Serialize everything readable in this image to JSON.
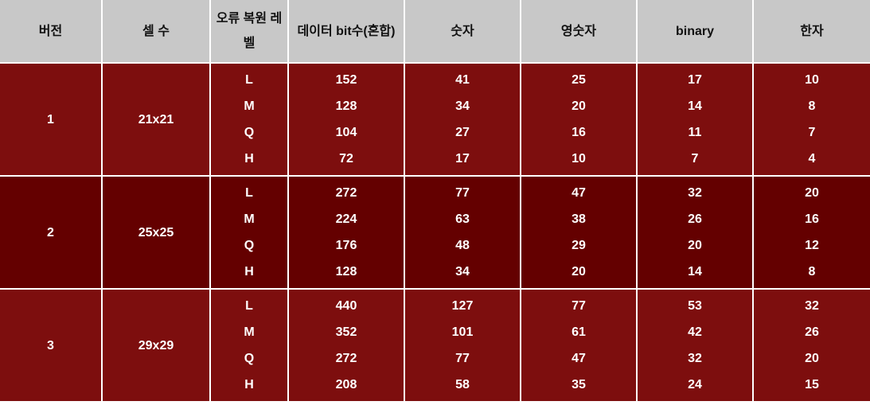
{
  "headers": [
    "버전",
    "셀 수",
    "오류 복원 레벨",
    "데이터 bit수(혼합)",
    "숫자",
    "영숫자",
    "binary",
    "한자"
  ],
  "versions": [
    {
      "version": "1",
      "cells": "21x21",
      "rows": [
        {
          "level": "L",
          "bits": "152",
          "numeric": "41",
          "alnum": "25",
          "binary": "17",
          "kanji": "10"
        },
        {
          "level": "M",
          "bits": "128",
          "numeric": "34",
          "alnum": "20",
          "binary": "14",
          "kanji": "8"
        },
        {
          "level": "Q",
          "bits": "104",
          "numeric": "27",
          "alnum": "16",
          "binary": "11",
          "kanji": "7"
        },
        {
          "level": "H",
          "bits": "72",
          "numeric": "17",
          "alnum": "10",
          "binary": "7",
          "kanji": "4"
        }
      ]
    },
    {
      "version": "2",
      "cells": "25x25",
      "rows": [
        {
          "level": "L",
          "bits": "272",
          "numeric": "77",
          "alnum": "47",
          "binary": "32",
          "kanji": "20"
        },
        {
          "level": "M",
          "bits": "224",
          "numeric": "63",
          "alnum": "38",
          "binary": "26",
          "kanji": "16"
        },
        {
          "level": "Q",
          "bits": "176",
          "numeric": "48",
          "alnum": "29",
          "binary": "20",
          "kanji": "12"
        },
        {
          "level": "H",
          "bits": "128",
          "numeric": "34",
          "alnum": "20",
          "binary": "14",
          "kanji": "8"
        }
      ]
    },
    {
      "version": "3",
      "cells": "29x29",
      "rows": [
        {
          "level": "L",
          "bits": "440",
          "numeric": "127",
          "alnum": "77",
          "binary": "53",
          "kanji": "32"
        },
        {
          "level": "M",
          "bits": "352",
          "numeric": "101",
          "alnum": "61",
          "binary": "42",
          "kanji": "26"
        },
        {
          "level": "Q",
          "bits": "272",
          "numeric": "77",
          "alnum": "47",
          "binary": "32",
          "kanji": "20"
        },
        {
          "level": "H",
          "bits": "208",
          "numeric": "58",
          "alnum": "35",
          "binary": "24",
          "kanji": "15"
        }
      ]
    }
  ]
}
